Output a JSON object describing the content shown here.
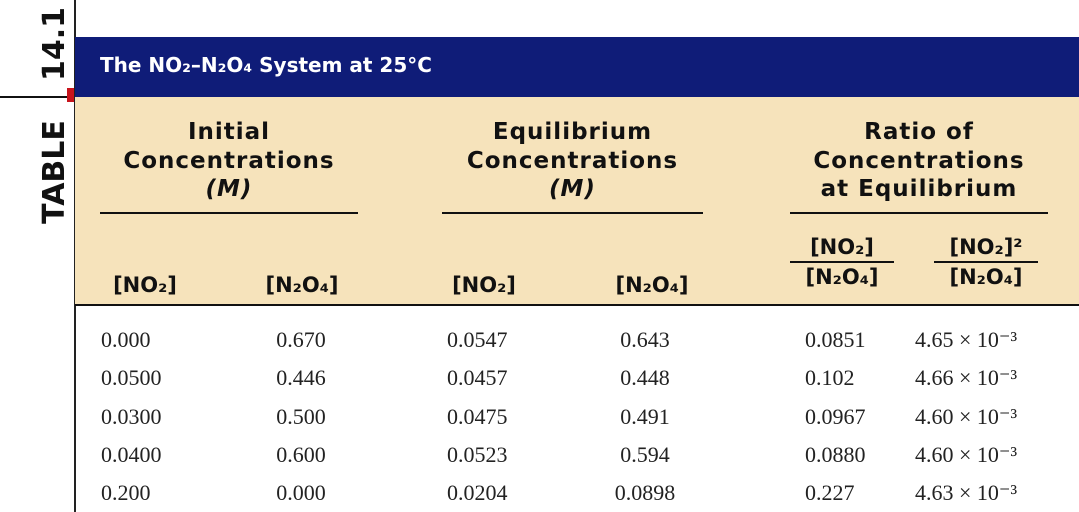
{
  "side_label": {
    "table": "TABLE",
    "number": "14.1"
  },
  "header": {
    "title": "The NO₂–N₂O₄ System at 25°C"
  },
  "table": {
    "groups": [
      {
        "lines": [
          "Initial",
          "Concentrations",
          "(M)"
        ]
      },
      {
        "lines": [
          "Equilibrium",
          "Concentrations",
          "(M)"
        ]
      },
      {
        "lines": [
          "Ratio of",
          "Concentrations",
          "at Equilibrium"
        ]
      }
    ],
    "columns": [
      "[NO₂]",
      "[N₂O₄]",
      "[NO₂]",
      "[N₂O₄]"
    ],
    "ratio_columns": [
      {
        "numerator": "[NO₂]",
        "denominator": "[N₂O₄]"
      },
      {
        "numerator": "[NO₂]²",
        "denominator": "[N₂O₄]"
      }
    ],
    "rows": [
      [
        "0.000",
        "0.670",
        "0.0547",
        "0.643",
        "0.0851",
        "4.65 × 10⁻³"
      ],
      [
        "0.0500",
        "0.446",
        "0.0457",
        "0.448",
        "0.102",
        "4.66 × 10⁻³"
      ],
      [
        "0.0300",
        "0.500",
        "0.0475",
        "0.491",
        "0.0967",
        "4.60 × 10⁻³"
      ],
      [
        "0.0400",
        "0.600",
        "0.0523",
        "0.594",
        "0.0880",
        "4.60 × 10⁻³"
      ],
      [
        "0.200",
        "0.000",
        "0.0204",
        "0.0898",
        "0.227",
        "4.63 × 10⁻³"
      ]
    ]
  }
}
